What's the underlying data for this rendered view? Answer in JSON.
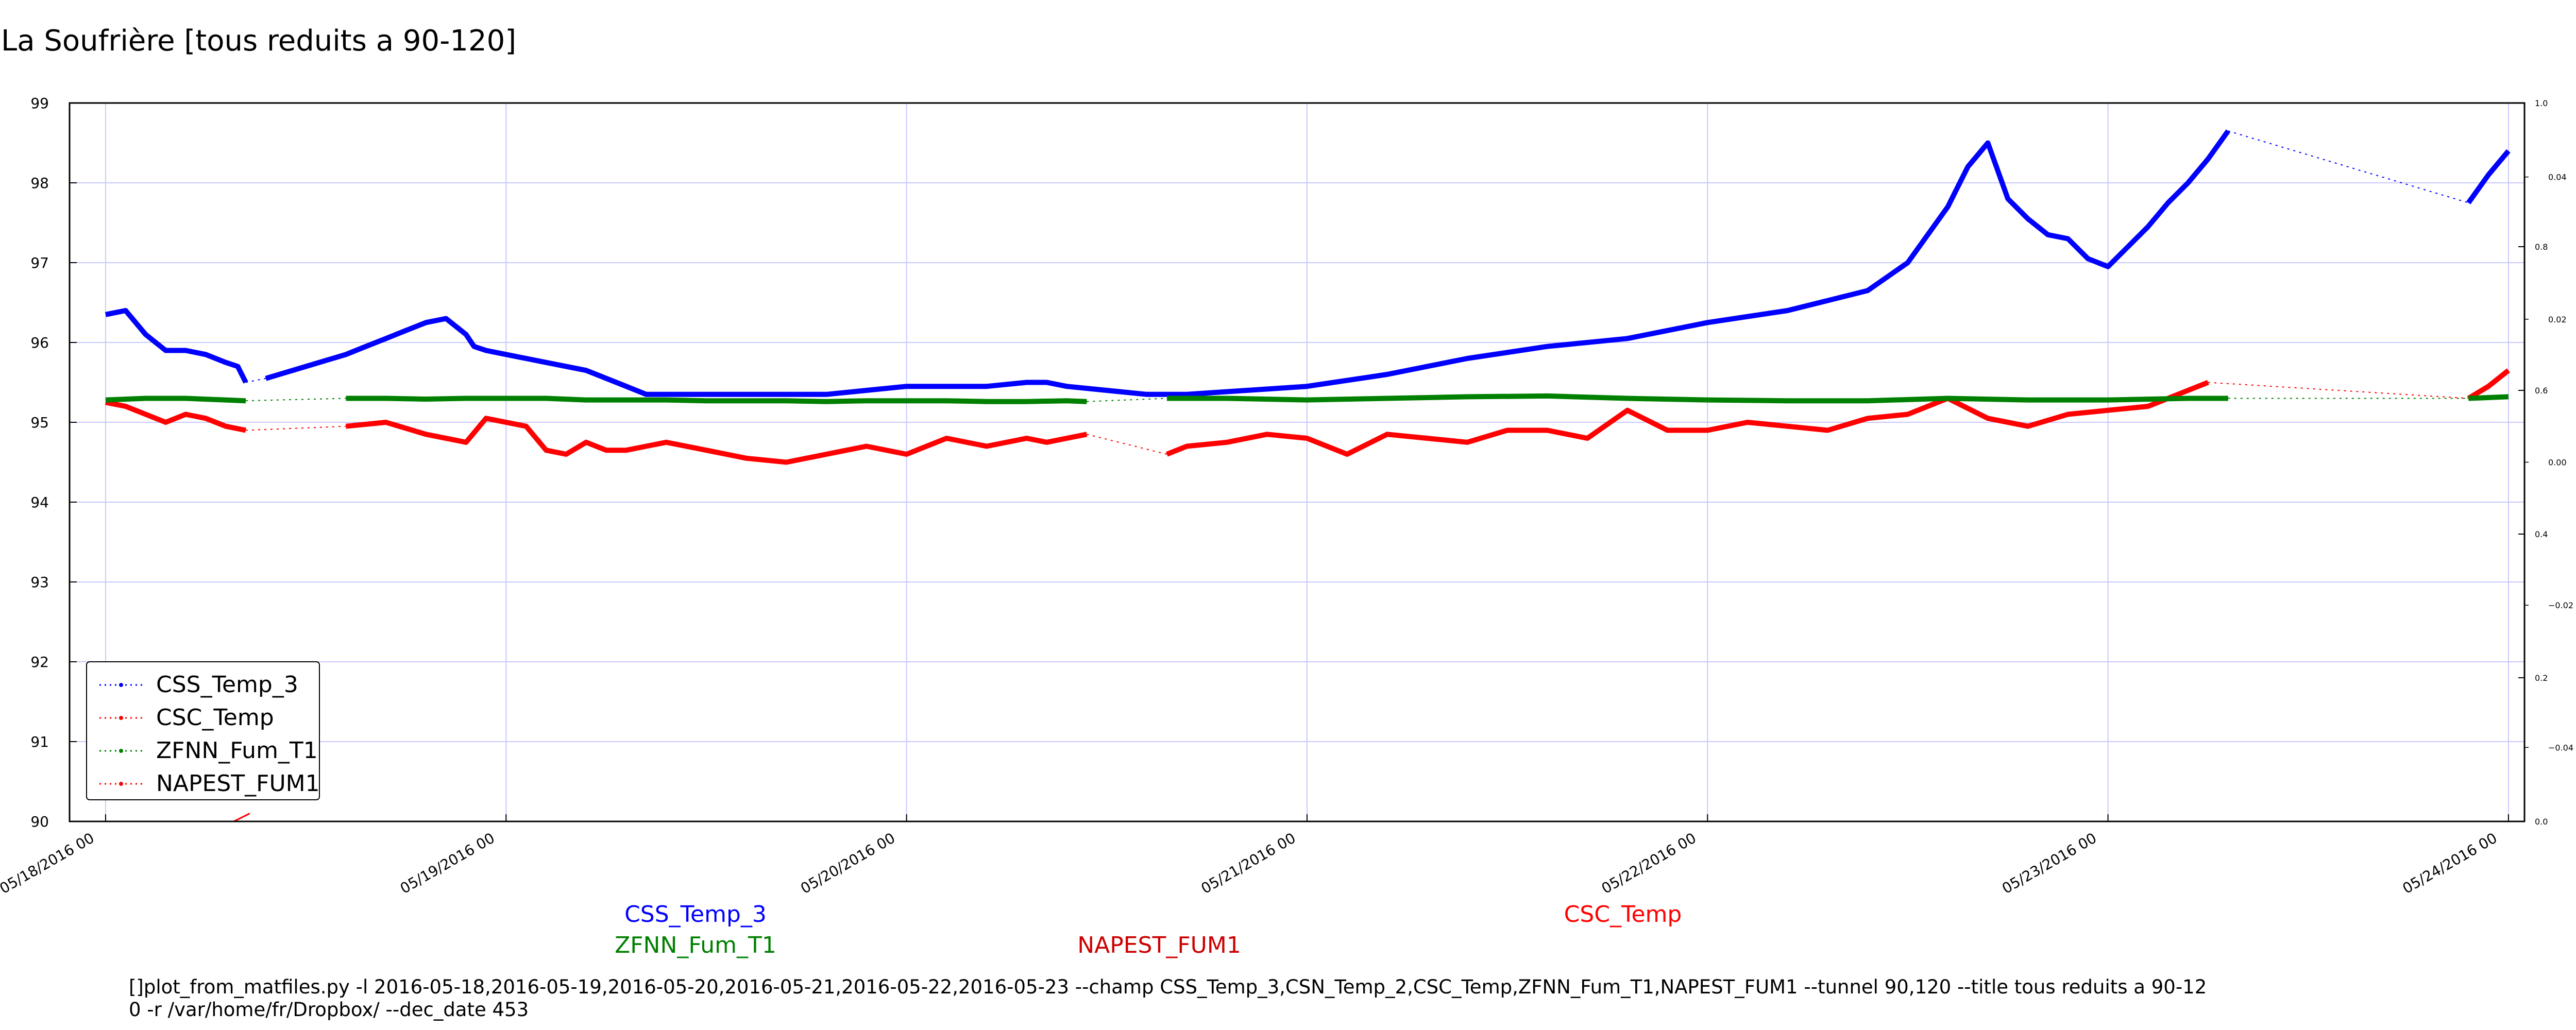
{
  "chart_data": {
    "type": "line",
    "title": "La Soufrière [tous reduits a 90-120]",
    "xlabel": "",
    "ylabel": "",
    "x_ticks": [
      "05/18/2016 00",
      "05/19/2016 00",
      "05/20/2016 00",
      "05/21/2016 00",
      "05/22/2016 00",
      "05/23/2016 00",
      "05/24/2016 00"
    ],
    "xlim": [
      -0.09,
      6.04
    ],
    "ylim": [
      90,
      99
    ],
    "y_ticks": [
      "90",
      "91",
      "92",
      "93",
      "94",
      "95",
      "96",
      "97",
      "98",
      "99"
    ],
    "right_axis_ticks": [
      {
        "value": 0.0,
        "label": "0.0"
      },
      {
        "value": 0.2,
        "label": "0.2"
      },
      {
        "value": 0.4,
        "label": "0.4"
      },
      {
        "value": 0.6,
        "label": "0.6"
      },
      {
        "value": 0.8,
        "label": "0.8"
      },
      {
        "value": 1.0,
        "label": "1.0"
      }
    ],
    "right_axis_ticks_small": [
      {
        "value": 0.103,
        "label": "−0.04"
      },
      {
        "value": 0.301,
        "label": "−0.02"
      },
      {
        "value": 0.5,
        "label": "0.00"
      },
      {
        "value": 0.699,
        "label": "0.02"
      },
      {
        "value": 0.897,
        "label": "0.04"
      }
    ],
    "grid": true,
    "legend_placement": "lower-left",
    "series": [
      {
        "name": "CSS_Temp_3",
        "color": "#0000ff",
        "x": [
          0.0,
          0.05,
          0.1,
          0.15,
          0.2,
          0.25,
          0.3,
          0.33,
          0.35,
          0.4,
          0.6,
          0.65,
          0.7,
          0.75,
          0.8,
          0.85,
          0.9,
          0.92,
          0.95,
          1.0,
          1.1,
          1.2,
          1.3,
          1.35,
          1.4,
          1.45,
          1.5,
          1.6,
          1.7,
          1.8,
          1.9,
          2.0,
          2.1,
          2.2,
          2.3,
          2.35,
          2.4,
          2.5,
          2.6,
          2.7,
          3.0,
          3.2,
          3.4,
          3.6,
          3.8,
          4.0,
          4.2,
          4.4,
          4.5,
          4.6,
          4.65,
          4.7,
          4.75,
          4.8,
          4.85,
          4.9,
          4.95,
          5.0,
          5.05,
          5.1,
          5.15,
          5.2,
          5.25,
          5.3,
          5.9,
          5.95,
          6.0
        ],
        "y": [
          96.35,
          96.4,
          96.1,
          95.9,
          95.9,
          95.85,
          95.75,
          95.7,
          95.5,
          95.55,
          95.85,
          95.95,
          96.05,
          96.15,
          96.25,
          96.3,
          96.1,
          95.95,
          95.9,
          95.85,
          95.75,
          95.65,
          95.45,
          95.35,
          95.35,
          95.35,
          95.35,
          95.35,
          95.35,
          95.35,
          95.4,
          95.45,
          95.45,
          95.45,
          95.5,
          95.5,
          95.45,
          95.4,
          95.35,
          95.35,
          95.45,
          95.6,
          95.8,
          95.95,
          96.05,
          96.25,
          96.4,
          96.65,
          97.0,
          97.7,
          98.2,
          98.5,
          97.8,
          97.55,
          97.35,
          97.3,
          97.05,
          96.95,
          97.2,
          97.45,
          97.75,
          98.0,
          98.3,
          98.65,
          97.75,
          98.1,
          98.4
        ],
        "values_note": "",
        "gaps_after_x": [
          0.35,
          2.45,
          5.3
        ]
      },
      {
        "name": "CSC_Temp",
        "color": "#ff0000",
        "x": [
          0.0,
          0.05,
          0.1,
          0.15,
          0.2,
          0.25,
          0.3,
          0.35,
          0.6,
          0.7,
          0.8,
          0.9,
          0.95,
          1.0,
          1.05,
          1.1,
          1.15,
          1.2,
          1.25,
          1.3,
          1.35,
          1.4,
          1.5,
          1.6,
          1.7,
          1.8,
          1.9,
          2.0,
          2.1,
          2.2,
          2.3,
          2.35,
          2.4,
          2.45,
          2.65,
          2.7,
          2.8,
          2.9,
          3.0,
          3.1,
          3.2,
          3.3,
          3.4,
          3.5,
          3.6,
          3.7,
          3.8,
          3.9,
          4.0,
          4.1,
          4.2,
          4.3,
          4.4,
          4.5,
          4.6,
          4.7,
          4.8,
          4.9,
          5.0,
          5.1,
          5.2,
          5.25,
          5.9,
          5.95,
          6.0
        ],
        "y": [
          95.25,
          95.2,
          95.1,
          95.0,
          95.1,
          95.05,
          94.95,
          94.9,
          94.95,
          95.0,
          94.85,
          94.75,
          95.05,
          95.0,
          94.95,
          94.65,
          94.6,
          94.75,
          94.65,
          94.65,
          94.7,
          94.75,
          94.65,
          94.55,
          94.5,
          94.6,
          94.7,
          94.6,
          94.8,
          94.7,
          94.8,
          94.75,
          94.8,
          94.85,
          94.6,
          94.7,
          94.75,
          94.85,
          94.8,
          94.6,
          94.85,
          94.8,
          94.75,
          94.9,
          94.9,
          94.8,
          95.15,
          94.9,
          94.9,
          95.0,
          94.95,
          94.9,
          95.05,
          95.1,
          95.3,
          95.05,
          94.95,
          95.1,
          95.15,
          95.2,
          95.4,
          95.5,
          95.3,
          95.45,
          95.65
        ],
        "gaps_after_x": [
          0.35,
          2.45,
          5.25
        ]
      },
      {
        "name": "ZFNN_Fum_T1",
        "color": "#008000",
        "x": [
          0.0,
          0.1,
          0.2,
          0.3,
          0.35,
          0.6,
          0.7,
          0.8,
          0.9,
          1.0,
          1.1,
          1.2,
          1.3,
          1.4,
          1.5,
          1.6,
          1.7,
          1.8,
          1.9,
          2.0,
          2.1,
          2.2,
          2.3,
          2.4,
          2.45,
          2.65,
          2.8,
          3.0,
          3.2,
          3.4,
          3.6,
          3.8,
          4.0,
          4.2,
          4.4,
          4.6,
          4.8,
          5.0,
          5.2,
          5.3,
          5.9,
          6.0
        ],
        "y": [
          95.28,
          95.3,
          95.3,
          95.28,
          95.27,
          95.3,
          95.3,
          95.29,
          95.3,
          95.3,
          95.3,
          95.28,
          95.28,
          95.28,
          95.27,
          95.27,
          95.27,
          95.26,
          95.27,
          95.27,
          95.27,
          95.26,
          95.26,
          95.27,
          95.26,
          95.3,
          95.3,
          95.28,
          95.3,
          95.32,
          95.33,
          95.3,
          95.28,
          95.27,
          95.27,
          95.3,
          95.28,
          95.28,
          95.3,
          95.3,
          95.3,
          95.32
        ],
        "gaps_after_x": [
          0.35,
          2.45,
          5.3
        ]
      },
      {
        "name": "NAPEST_FUM1",
        "color": "#ff0000",
        "x": [
          0.32,
          0.36
        ],
        "y": [
          90.0,
          90.1
        ],
        "gaps_after_x": []
      }
    ],
    "annotations": [
      {
        "text": "CSS_Temp_3",
        "color": "#0000ff"
      },
      {
        "text": "ZFNN_Fum_T1",
        "color": "#008000"
      },
      {
        "text": "NAPEST_FUM1",
        "color": "#cc0000"
      },
      {
        "text": "CSC_Temp",
        "color": "#ff0000"
      }
    ],
    "footer": "[]plot_from_matfiles.py -l 2016-05-18,2016-05-19,2016-05-20,2016-05-21,2016-05-22,2016-05-23 --champ CSS_Temp_3,CSN_Temp_2,CSC_Temp,ZFNN_Fum_T1,NAPEST_FUM1 --tunnel 90,120 --title tous reduits a 90-12\n0 -r /var/home/fr/Dropbox/ --dec_date 453"
  }
}
